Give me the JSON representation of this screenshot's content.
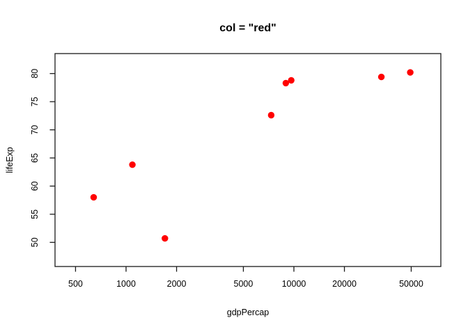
{
  "figure": {
    "background": "#ffffff",
    "frame_color": "#1a1a1a"
  },
  "chart_data": {
    "type": "scatter",
    "title": "col = \"red\"",
    "xlabel": "gdpPercap",
    "ylabel": "lifeExp",
    "x_scale": "log10",
    "grid": false,
    "legend": null,
    "point_color": "#ff0000",
    "point_shape": "filled-circle",
    "x_ticks": [
      500,
      1000,
      2000,
      5000,
      10000,
      20000,
      50000
    ],
    "y_ticks": [
      50,
      55,
      60,
      65,
      70,
      75,
      80
    ],
    "xlim": [
      375,
      75000
    ],
    "ylim": [
      45.7,
      83.6
    ],
    "points": [
      {
        "x": 641,
        "y": 58.0
      },
      {
        "x": 1091,
        "y": 63.8
      },
      {
        "x": 1704,
        "y": 50.7
      },
      {
        "x": 7321,
        "y": 72.6
      },
      {
        "x": 8948,
        "y": 78.3
      },
      {
        "x": 9645,
        "y": 78.8
      },
      {
        "x": 33200,
        "y": 79.4
      },
      {
        "x": 49360,
        "y": 80.2
      }
    ]
  }
}
